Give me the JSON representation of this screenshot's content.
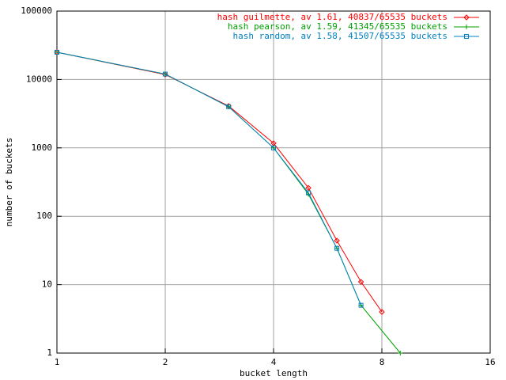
{
  "chart_data": {
    "type": "line",
    "xlabel": "bucket length",
    "ylabel": "number of buckets",
    "xscale": "log2",
    "yscale": "log10",
    "xlim": [
      1,
      16
    ],
    "xticks": [
      1,
      2,
      4,
      8,
      16
    ],
    "ylim": [
      1,
      100000
    ],
    "yticks": [
      1,
      10,
      100,
      1000,
      10000,
      100000
    ],
    "grid": true,
    "legend": "top-right",
    "series": [
      {
        "name": "hash guilmette, av 1.61, 40837/65535 buckets",
        "color": "#ff0000",
        "marker": "diamond",
        "x": [
          1,
          2,
          3,
          4,
          5,
          6,
          7,
          8
        ],
        "values": [
          25000,
          11800,
          4100,
          1170,
          260,
          44,
          11,
          4
        ]
      },
      {
        "name": "hash pearson, av 1.59, 41345/65535 buckets",
        "color": "#00a000",
        "marker": "plus",
        "x": [
          1,
          2,
          3,
          4,
          5,
          6,
          7,
          9
        ],
        "values": [
          25000,
          12000,
          4000,
          1000,
          210,
          34,
          5,
          1
        ]
      },
      {
        "name": "hash random, av 1.58, 41507/65535 buckets",
        "color": "#0080c0",
        "marker": "square",
        "x": [
          1,
          2,
          3,
          4,
          5,
          6,
          7
        ],
        "values": [
          25000,
          12000,
          4000,
          1000,
          220,
          34,
          5
        ]
      }
    ]
  }
}
